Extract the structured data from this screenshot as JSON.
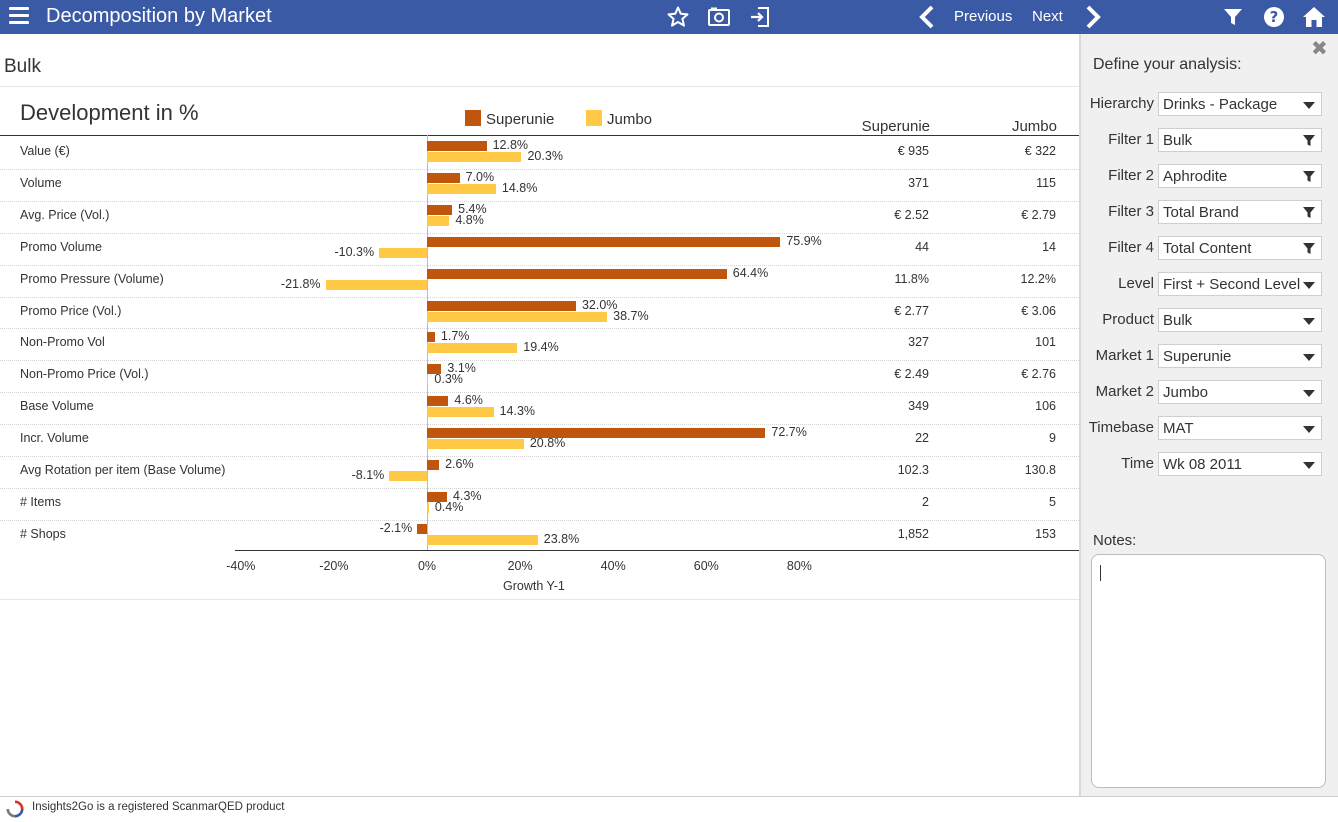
{
  "header": {
    "title": "Decomposition by Market",
    "previous_label": "Previous",
    "next_label": "Next"
  },
  "icons": {
    "menu": "hamburger-icon",
    "star": "star-icon",
    "camera": "camera-icon",
    "export": "export-icon",
    "prev": "chevron-left-icon",
    "next": "chevron-right-icon",
    "filter": "filter-icon",
    "help": "help-icon",
    "home": "home-icon"
  },
  "breadcrumb": "Bulk",
  "colors": {
    "header_bg": "#3b5aa6",
    "superunie": "#c0560d",
    "jumbo": "#ffc845"
  },
  "chart_data": {
    "type": "bar",
    "title": "Development in %",
    "xlabel": "Growth Y-1",
    "ylabel": "",
    "xlim": [
      -40,
      80
    ],
    "ticks": [
      "-40%",
      "-20%",
      "0%",
      "20%",
      "40%",
      "60%",
      "80%"
    ],
    "tick_values": [
      -40,
      -20,
      0,
      20,
      40,
      60,
      80
    ],
    "legend": [
      "Superunie",
      "Jumbo"
    ],
    "categories": [
      "Value (€)",
      "Volume",
      "Avg. Price (Vol.)",
      "Promo Volume",
      "Promo Pressure (Volume)",
      "Promo Price (Vol.)",
      "Non-Promo Vol",
      "Non-Promo Price (Vol.)",
      "Base Volume",
      "Incr. Volume",
      "Avg Rotation per item (Base Volume)",
      "# Items",
      "# Shops"
    ],
    "series": [
      {
        "name": "Superunie",
        "values": [
          12.8,
          7.0,
          5.4,
          75.9,
          64.4,
          32.0,
          1.7,
          3.1,
          4.6,
          72.7,
          2.6,
          4.3,
          -2.1
        ]
      },
      {
        "name": "Jumbo",
        "values": [
          20.3,
          14.8,
          4.8,
          -10.3,
          -21.8,
          38.7,
          19.4,
          0.3,
          14.3,
          20.8,
          -8.1,
          0.4,
          23.8
        ]
      }
    ]
  },
  "table": {
    "columns": [
      "Superunie",
      "Jumbo"
    ],
    "rows": [
      [
        "€ 935",
        "€ 322"
      ],
      [
        "371",
        "115"
      ],
      [
        "€ 2.52",
        "€ 2.79"
      ],
      [
        "44",
        "14"
      ],
      [
        "11.8%",
        "12.2%"
      ],
      [
        "€ 2.77",
        "€ 3.06"
      ],
      [
        "327",
        "101"
      ],
      [
        "€ 2.49",
        "€ 2.76"
      ],
      [
        "349",
        "106"
      ],
      [
        "22",
        "9"
      ],
      [
        "102.3",
        "130.8"
      ],
      [
        "2",
        "5"
      ],
      [
        "1,852",
        "153"
      ]
    ]
  },
  "side_panel": {
    "heading": "Define your analysis:",
    "fields": [
      {
        "label": "Hierarchy",
        "value": "Drinks - Package",
        "kind": "dropdown"
      },
      {
        "label": "Filter 1",
        "value": "Bulk",
        "kind": "filter"
      },
      {
        "label": "Filter 2",
        "value": "Aphrodite",
        "kind": "filter"
      },
      {
        "label": "Filter 3",
        "value": "Total Brand",
        "kind": "filter"
      },
      {
        "label": "Filter 4",
        "value": "Total Content",
        "kind": "filter"
      },
      {
        "label": "Level",
        "value": "First + Second Level",
        "kind": "dropdown"
      },
      {
        "label": "Product",
        "value": "Bulk",
        "kind": "dropdown"
      },
      {
        "label": "Market 1",
        "value": "Superunie",
        "kind": "dropdown"
      },
      {
        "label": "Market 2",
        "value": "Jumbo",
        "kind": "dropdown"
      },
      {
        "label": "Timebase",
        "value": "MAT",
        "kind": "dropdown"
      },
      {
        "label": "Time",
        "value": "Wk 08 2011",
        "kind": "dropdown"
      }
    ],
    "notes_label": "Notes:",
    "notes_value": ""
  },
  "footer": {
    "text": "Insights2Go is  a registered ScanmarQED product"
  }
}
